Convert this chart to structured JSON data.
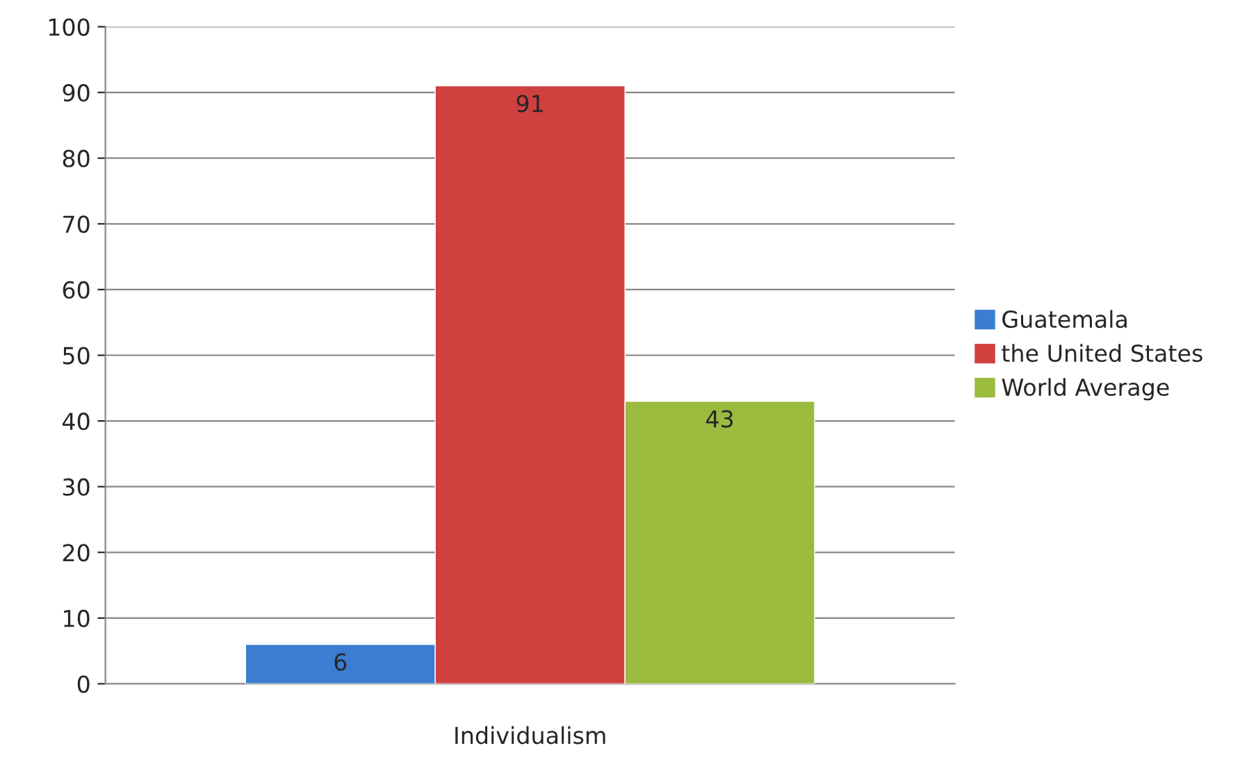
{
  "chart_data": {
    "type": "bar",
    "categories": [
      "Individualism"
    ],
    "series": [
      {
        "name": "Guatemala",
        "color": "#3b7dd0",
        "values": [
          6
        ]
      },
      {
        "name": "the United States",
        "color": "#d0403f",
        "values": [
          91
        ]
      },
      {
        "name": "World Average",
        "color": "#9bbb3f",
        "values": [
          43
        ]
      }
    ],
    "ylim": [
      0,
      100
    ],
    "yticks": [
      0,
      10,
      20,
      30,
      40,
      50,
      60,
      70,
      80,
      90,
      100
    ],
    "grid": "y",
    "legend": "right",
    "data_labels": true
  }
}
